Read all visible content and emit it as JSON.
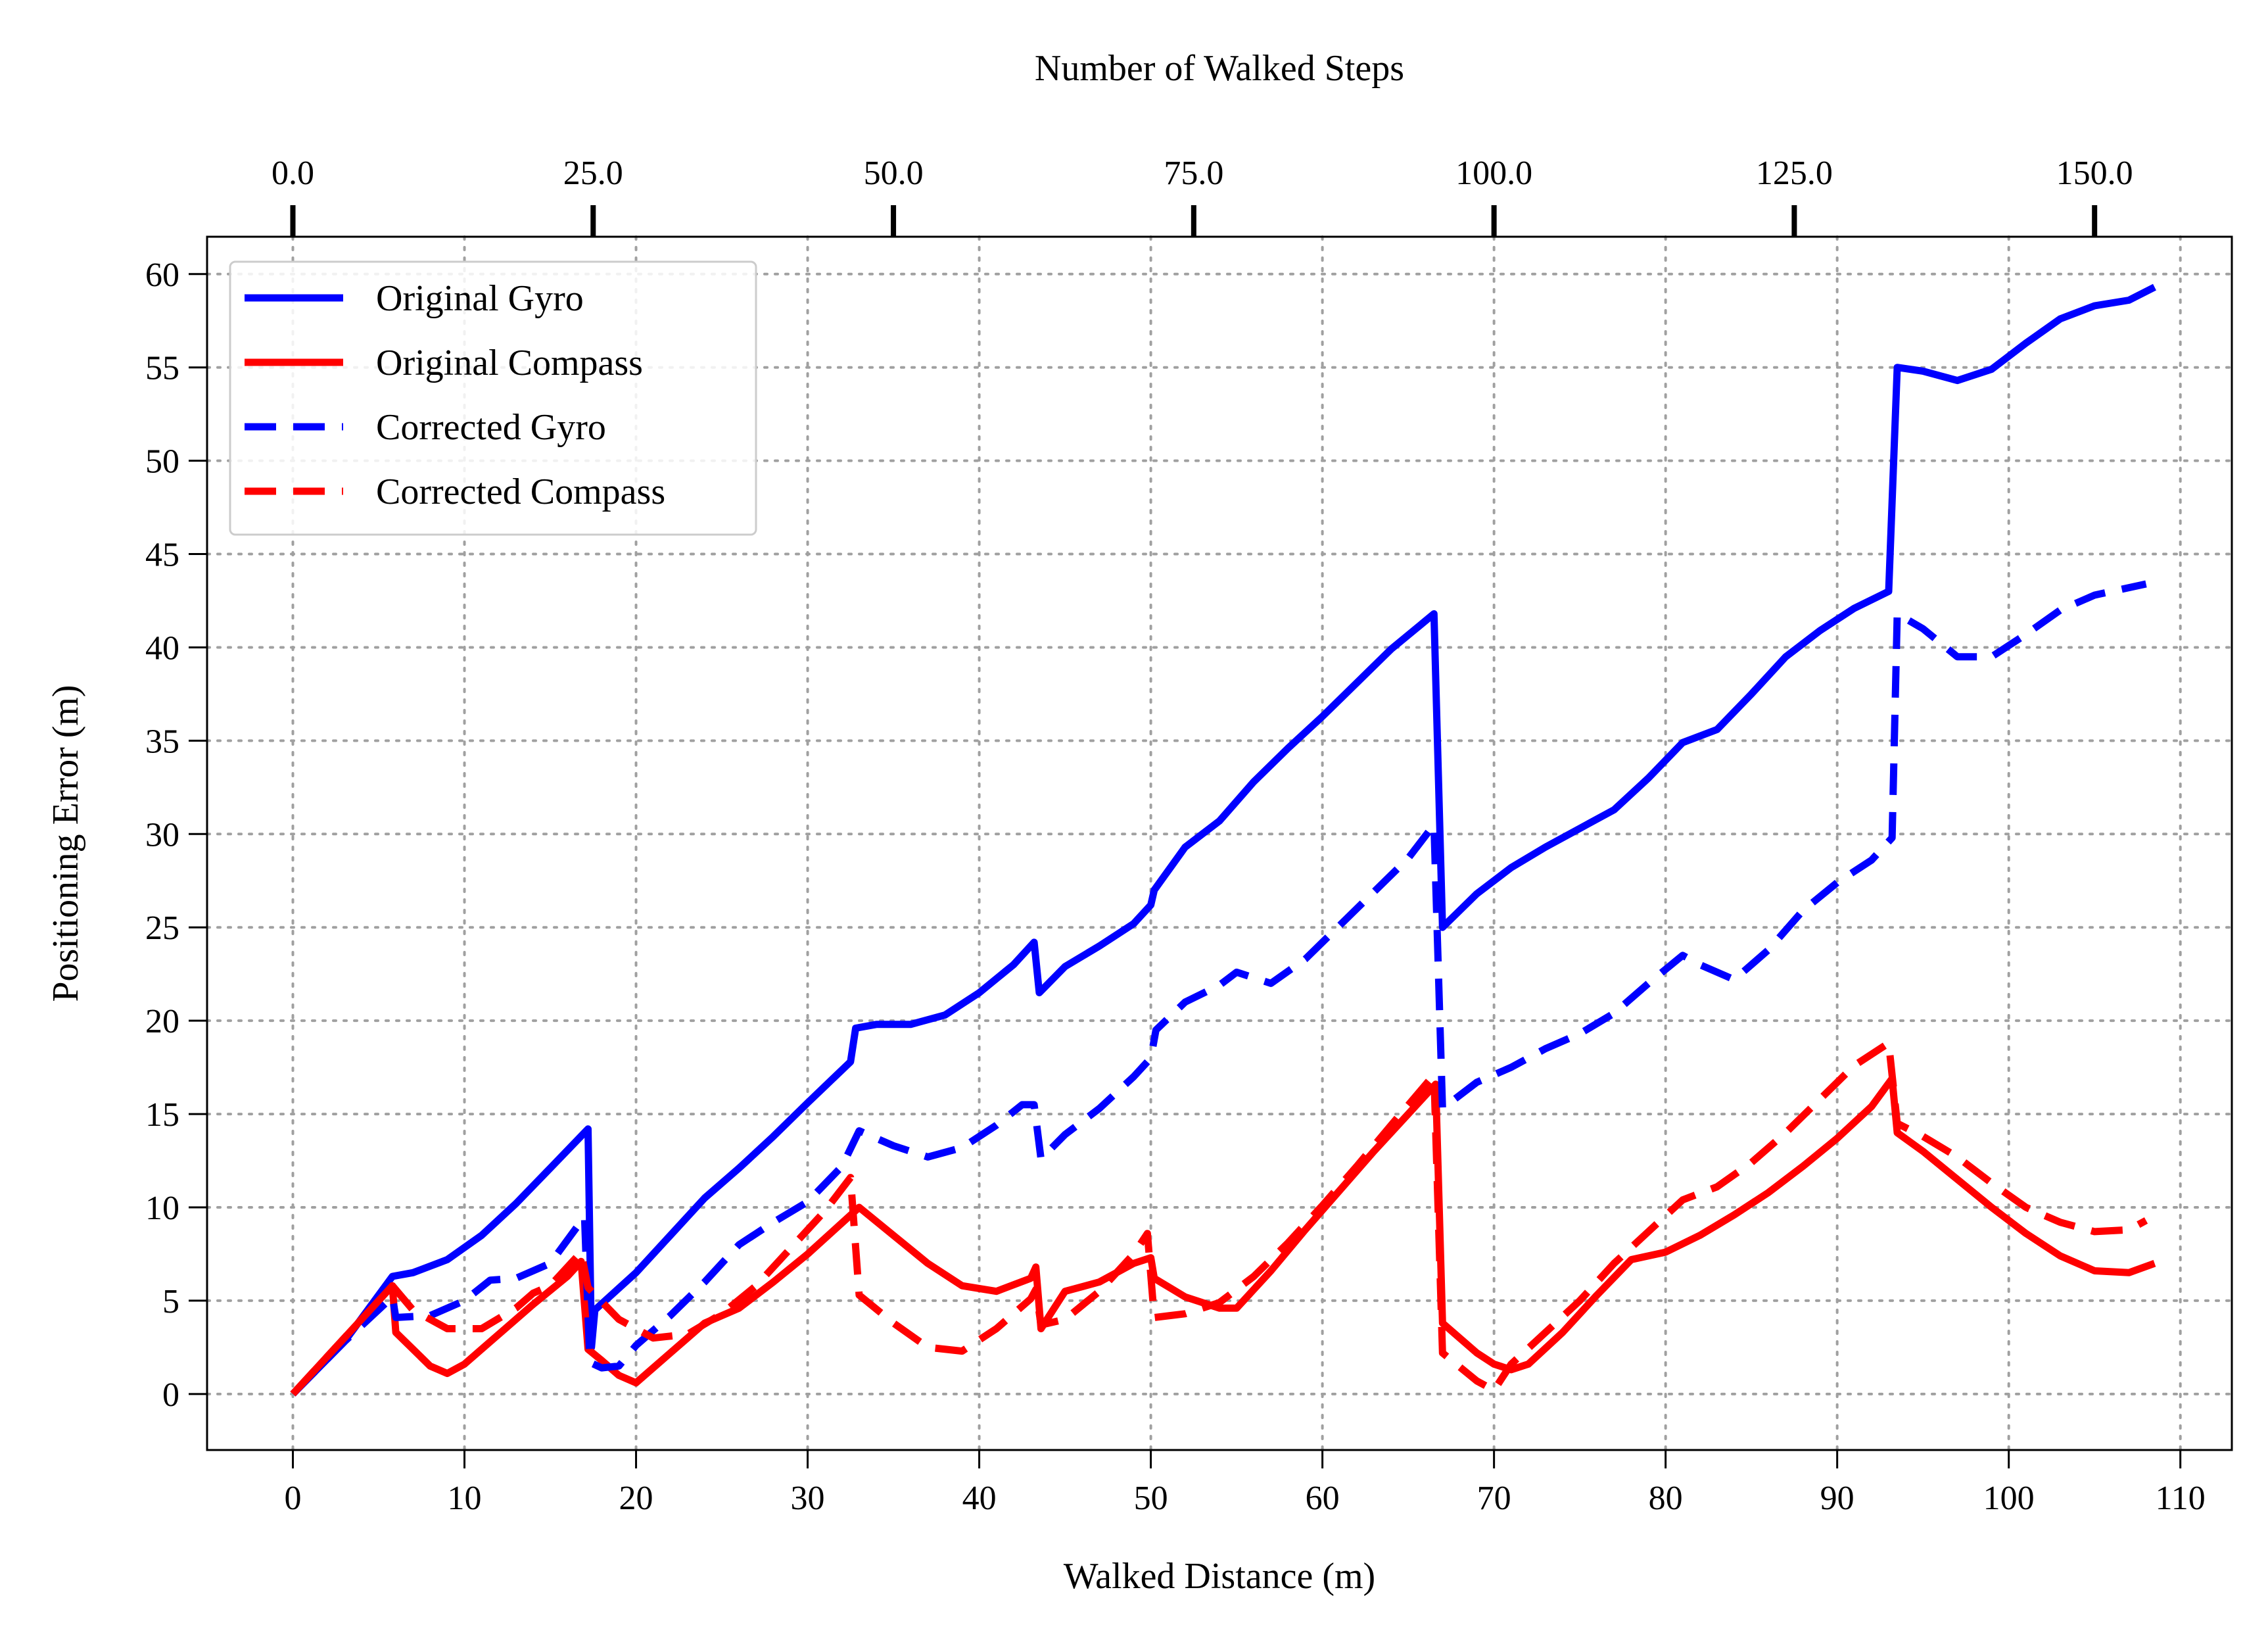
{
  "chart_data": {
    "type": "line",
    "xlabel": "Walked Distance (m)",
    "ylabel": "Positioning Error (m)",
    "x2label": "Number of Walked Steps",
    "xlim": [
      -5,
      113
    ],
    "ylim": [
      -3,
      62
    ],
    "x_ticks": [
      0,
      10,
      20,
      30,
      40,
      50,
      60,
      70,
      80,
      90,
      100,
      110
    ],
    "y_ticks": [
      0,
      5,
      10,
      15,
      20,
      25,
      30,
      35,
      40,
      45,
      50,
      55,
      60
    ],
    "x2_ticks": [
      {
        "label": "0.0",
        "x": 0
      },
      {
        "label": "25.0",
        "x": 17.5
      },
      {
        "label": "50.0",
        "x": 35
      },
      {
        "label": "75.0",
        "x": 52.5
      },
      {
        "label": "100.0",
        "x": 70
      },
      {
        "label": "125.0",
        "x": 87.5
      },
      {
        "label": "150.0",
        "x": 105
      }
    ],
    "grid": true,
    "legend_position": "top-left",
    "series": [
      {
        "name": "Original Gyro",
        "color": "#0000ff",
        "style": "solid",
        "points": [
          [
            0,
            0
          ],
          [
            3,
            2.8
          ],
          [
            5.8,
            6.3
          ],
          [
            7,
            6.5
          ],
          [
            9,
            7.2
          ],
          [
            11,
            8.5
          ],
          [
            13,
            10.2
          ],
          [
            15,
            12.1
          ],
          [
            17.2,
            14.2
          ],
          [
            17.4,
            2.5
          ],
          [
            17.6,
            4.5
          ],
          [
            20,
            6.5
          ],
          [
            22,
            8.5
          ],
          [
            24,
            10.5
          ],
          [
            26,
            12.1
          ],
          [
            28,
            13.8
          ],
          [
            30,
            15.6
          ],
          [
            32.5,
            17.8
          ],
          [
            32.8,
            19.6
          ],
          [
            34,
            19.8
          ],
          [
            36,
            19.8
          ],
          [
            38,
            20.3
          ],
          [
            40,
            21.5
          ],
          [
            42,
            23
          ],
          [
            43.2,
            24.2
          ],
          [
            43.5,
            21.5
          ],
          [
            45,
            22.9
          ],
          [
            47,
            24
          ],
          [
            49,
            25.2
          ],
          [
            50,
            26.2
          ],
          [
            50.2,
            27
          ],
          [
            52,
            29.3
          ],
          [
            54,
            30.7
          ],
          [
            56,
            32.8
          ],
          [
            58,
            34.6
          ],
          [
            60,
            36.3
          ],
          [
            62,
            38.1
          ],
          [
            64,
            39.9
          ],
          [
            66.5,
            41.8
          ],
          [
            67,
            25
          ],
          [
            69,
            26.8
          ],
          [
            71,
            28.2
          ],
          [
            73,
            29.3
          ],
          [
            75,
            30.3
          ],
          [
            77,
            31.3
          ],
          [
            79,
            33
          ],
          [
            81,
            34.9
          ],
          [
            83,
            35.6
          ],
          [
            85,
            37.5
          ],
          [
            87,
            39.5
          ],
          [
            89,
            40.9
          ],
          [
            91,
            42.1
          ],
          [
            93,
            43
          ],
          [
            93.5,
            55
          ],
          [
            95,
            54.8
          ],
          [
            97,
            54.3
          ],
          [
            99,
            54.9
          ],
          [
            101,
            56.3
          ],
          [
            103,
            57.6
          ],
          [
            105,
            58.3
          ],
          [
            107,
            58.6
          ],
          [
            108.5,
            59.3
          ]
        ]
      },
      {
        "name": "Original Compass",
        "color": "#ff0000",
        "style": "solid",
        "points": [
          [
            0,
            0
          ],
          [
            5.8,
            5.8
          ],
          [
            6,
            3.3
          ],
          [
            7,
            2.4
          ],
          [
            8,
            1.5
          ],
          [
            9,
            1.1
          ],
          [
            10,
            1.6
          ],
          [
            12,
            3.2
          ],
          [
            14,
            4.8
          ],
          [
            16,
            6.3
          ],
          [
            16.8,
            7.1
          ],
          [
            17.2,
            2.4
          ],
          [
            18,
            1.8
          ],
          [
            19,
            1
          ],
          [
            20,
            0.6
          ],
          [
            22,
            2.2
          ],
          [
            24,
            3.8
          ],
          [
            26,
            4.6
          ],
          [
            28,
            6
          ],
          [
            30,
            7.5
          ],
          [
            33,
            10
          ],
          [
            35,
            8.5
          ],
          [
            37,
            7
          ],
          [
            39,
            5.8
          ],
          [
            41,
            5.5
          ],
          [
            43,
            6.2
          ],
          [
            43.3,
            6.8
          ],
          [
            43.6,
            3.5
          ],
          [
            45,
            5.5
          ],
          [
            47,
            6
          ],
          [
            49,
            7
          ],
          [
            50,
            7.3
          ],
          [
            50.2,
            6.2
          ],
          [
            52,
            5.2
          ],
          [
            54,
            4.6
          ],
          [
            55,
            4.6
          ],
          [
            57,
            6.6
          ],
          [
            59,
            8.8
          ],
          [
            61,
            10.9
          ],
          [
            63,
            13
          ],
          [
            65,
            15
          ],
          [
            66.6,
            16.6
          ],
          [
            67,
            3.8
          ],
          [
            69,
            2.2
          ],
          [
            70,
            1.6
          ],
          [
            71,
            1.3
          ],
          [
            72,
            1.6
          ],
          [
            74,
            3.3
          ],
          [
            76,
            5.3
          ],
          [
            78,
            7.2
          ],
          [
            80,
            7.6
          ],
          [
            82,
            8.5
          ],
          [
            84,
            9.6
          ],
          [
            86,
            10.8
          ],
          [
            88,
            12.2
          ],
          [
            90,
            13.7
          ],
          [
            92,
            15.4
          ],
          [
            93.2,
            16.9
          ],
          [
            93.5,
            14
          ],
          [
            95,
            13
          ],
          [
            97,
            11.5
          ],
          [
            99,
            10
          ],
          [
            101,
            8.6
          ],
          [
            103,
            7.4
          ],
          [
            105,
            6.6
          ],
          [
            107,
            6.5
          ],
          [
            108.5,
            7
          ]
        ]
      },
      {
        "name": "Corrected Gyro",
        "color": "#0000ff",
        "style": "dashed",
        "points": [
          [
            0,
            0
          ],
          [
            3,
            2.8
          ],
          [
            5.8,
            5.2
          ],
          [
            6,
            4.1
          ],
          [
            8,
            4.2
          ],
          [
            10,
            5
          ],
          [
            11.5,
            6.1
          ],
          [
            13,
            6.2
          ],
          [
            15,
            7
          ],
          [
            17,
            9.5
          ],
          [
            17.3,
            1.7
          ],
          [
            18,
            1.4
          ],
          [
            19,
            1.5
          ],
          [
            20,
            2.6
          ],
          [
            22,
            4.2
          ],
          [
            24,
            6
          ],
          [
            26,
            8
          ],
          [
            28,
            9.2
          ],
          [
            30,
            10.3
          ],
          [
            32,
            12.2
          ],
          [
            33,
            14.1
          ],
          [
            35,
            13.3
          ],
          [
            37,
            12.7
          ],
          [
            39,
            13.2
          ],
          [
            41,
            14.4
          ],
          [
            42.5,
            15.5
          ],
          [
            43.2,
            15.5
          ],
          [
            43.6,
            12.6
          ],
          [
            45,
            13.9
          ],
          [
            47,
            15.3
          ],
          [
            49,
            17
          ],
          [
            50,
            18
          ],
          [
            50.3,
            19.5
          ],
          [
            52,
            21
          ],
          [
            54,
            21.9
          ],
          [
            55,
            22.6
          ],
          [
            57,
            22
          ],
          [
            59,
            23.3
          ],
          [
            61,
            25.1
          ],
          [
            63,
            26.9
          ],
          [
            65,
            28.7
          ],
          [
            66.5,
            30.5
          ],
          [
            67,
            15.3
          ],
          [
            69,
            16.7
          ],
          [
            71,
            17.5
          ],
          [
            73,
            18.5
          ],
          [
            75,
            19.3
          ],
          [
            77,
            20.4
          ],
          [
            79,
            22
          ],
          [
            81,
            23.5
          ],
          [
            82,
            23
          ],
          [
            84,
            22.2
          ],
          [
            86,
            23.8
          ],
          [
            88,
            25.9
          ],
          [
            90,
            27.4
          ],
          [
            92,
            28.6
          ],
          [
            93.2,
            29.8
          ],
          [
            93.5,
            41.8
          ],
          [
            95,
            41
          ],
          [
            97,
            39.5
          ],
          [
            99,
            39.5
          ],
          [
            101,
            40.7
          ],
          [
            103,
            42
          ],
          [
            105,
            42.8
          ],
          [
            108,
            43.4
          ]
        ]
      },
      {
        "name": "Corrected Compass",
        "color": "#ff0000",
        "style": "dashed",
        "points": [
          [
            0,
            0
          ],
          [
            5.8,
            5.8
          ],
          [
            7,
            4.5
          ],
          [
            9,
            3.5
          ],
          [
            11,
            3.5
          ],
          [
            13,
            4.6
          ],
          [
            14,
            5.4
          ],
          [
            15,
            5.8
          ],
          [
            16.8,
            7.6
          ],
          [
            17.2,
            5.7
          ],
          [
            19,
            4
          ],
          [
            21,
            3
          ],
          [
            23,
            3.2
          ],
          [
            25,
            4.3
          ],
          [
            27,
            5.8
          ],
          [
            29,
            7.8
          ],
          [
            31,
            9.8
          ],
          [
            32.5,
            11.6
          ],
          [
            33,
            5.3
          ],
          [
            35,
            3.8
          ],
          [
            37,
            2.5
          ],
          [
            39,
            2.3
          ],
          [
            41,
            3.5
          ],
          [
            43,
            5.1
          ],
          [
            43.3,
            5.6
          ],
          [
            43.6,
            3.7
          ],
          [
            45,
            4
          ],
          [
            47,
            5.5
          ],
          [
            49,
            7.5
          ],
          [
            49.8,
            8.6
          ],
          [
            50.2,
            4.1
          ],
          [
            52,
            4.3
          ],
          [
            54,
            4.9
          ],
          [
            56,
            6.3
          ],
          [
            58,
            8.1
          ],
          [
            60,
            10.1
          ],
          [
            62,
            12.2
          ],
          [
            64,
            14.4
          ],
          [
            66.5,
            17.1
          ],
          [
            67,
            2.2
          ],
          [
            69,
            0.7
          ],
          [
            70,
            0.2
          ],
          [
            71,
            1.6
          ],
          [
            73,
            3.3
          ],
          [
            75,
            5
          ],
          [
            77,
            7
          ],
          [
            79,
            8.7
          ],
          [
            81,
            10.4
          ],
          [
            83,
            11.1
          ],
          [
            85,
            12.4
          ],
          [
            87,
            14
          ],
          [
            89,
            15.8
          ],
          [
            91,
            17.6
          ],
          [
            93,
            18.8
          ],
          [
            93.5,
            14.5
          ],
          [
            95,
            13.8
          ],
          [
            97,
            12.7
          ],
          [
            99,
            11.3
          ],
          [
            101,
            10
          ],
          [
            103,
            9.2
          ],
          [
            105,
            8.7
          ],
          [
            107,
            8.8
          ],
          [
            108,
            9.3
          ]
        ]
      }
    ]
  }
}
